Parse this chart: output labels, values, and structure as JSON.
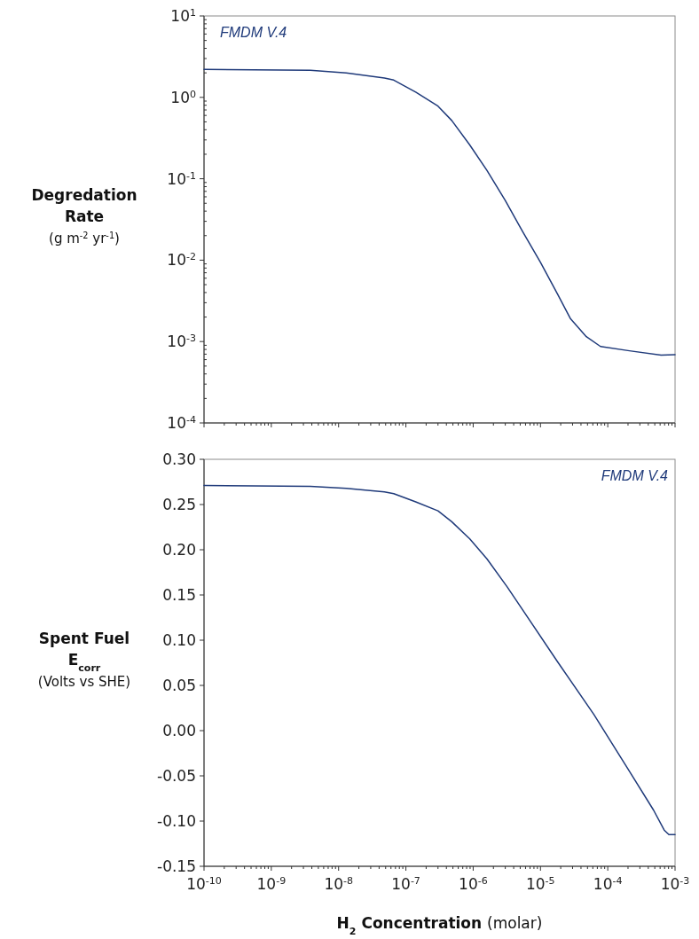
{
  "chart_data": [
    {
      "type": "line",
      "ylabel": "Degredation\nRate\n(g m$^{-2}$ yr$^{-1}$)",
      "annotations": [
        "FMDM V.4"
      ],
      "log": "xy",
      "xlim": [
        1e-10,
        0.001
      ],
      "xticks": [
        1e-10,
        1e-09,
        1e-08,
        1e-07,
        1e-06,
        1e-05,
        0.0001,
        0.001
      ],
      "ylim": [
        0.0001,
        10
      ],
      "yticks": [
        {
          "value": 0.0001,
          "label": "10$^{-4}$"
        },
        {
          "value": 0.001,
          "label": "10$^{-3}$"
        },
        {
          "value": 0.01,
          "label": "10$^{-2}$"
        },
        {
          "value": 0.1,
          "label": "10$^{-1}$"
        },
        {
          "value": 1,
          "label": "10$^{0}$"
        },
        {
          "value": 10,
          "label": "10$^{1}$"
        }
      ],
      "tick_labels": "y",
      "grid": false,
      "marker": "none",
      "line_style": "solid",
      "series": [
        {
          "color": "#1f3a7a",
          "x": [
            1e-10,
            3.8e-09,
            1.3e-08,
            4.8e-08,
            6.6e-08,
            1.4e-07,
            3e-07,
            4.8e-07,
            8.9e-07,
            1.6e-06,
            3e-06,
            5.5e-06,
            1e-05,
            1.8e-05,
            2.8e-05,
            4.8e-05,
            7.8e-05,
            0.00021,
            0.00062,
            0.001
          ],
          "values": [
            2.2,
            2.15,
            2.0,
            1.73,
            1.63,
            1.16,
            0.78,
            0.52,
            0.26,
            0.127,
            0.054,
            0.022,
            0.0094,
            0.0038,
            0.0019,
            0.00115,
            0.00087,
            0.00077,
            0.00068,
            0.00069
          ]
        }
      ]
    },
    {
      "type": "line",
      "xlabel": "H$_{2}$ Concentration (molar)",
      "ylabel": "Spent Fuel\nE$_{corr}$\n(Volts vs SHE)",
      "annotations": [
        "FMDM V.4"
      ],
      "log": "x",
      "xlim": [
        1e-10,
        0.001
      ],
      "xticks": [
        {
          "value": 1e-10,
          "label": "10$^{-10}$"
        },
        {
          "value": 1e-09,
          "label": "10$^{-9}$"
        },
        {
          "value": 1e-08,
          "label": "10$^{-8}$"
        },
        {
          "value": 1e-07,
          "label": "10$^{-7}$"
        },
        {
          "value": 1e-06,
          "label": "10$^{-6}$"
        },
        {
          "value": 1e-05,
          "label": "10$^{-5}$"
        },
        {
          "value": 0.0001,
          "label": "10$^{-4}$"
        },
        {
          "value": 0.001,
          "label": "10$^{-3}$"
        }
      ],
      "ylim": [
        -0.15,
        0.3
      ],
      "yticks": [
        {
          "value": -0.15,
          "label": "-0.15"
        },
        {
          "value": -0.1,
          "label": "-0.10"
        },
        {
          "value": -0.05,
          "label": "-0.05"
        },
        {
          "value": 0,
          "label": "0.00"
        },
        {
          "value": 0.05,
          "label": "0.05"
        },
        {
          "value": 0.1,
          "label": "0.10"
        },
        {
          "value": 0.15,
          "label": "0.15"
        },
        {
          "value": 0.2,
          "label": "0.20"
        },
        {
          "value": 0.25,
          "label": "0.25"
        },
        {
          "value": 0.3,
          "label": "0.30"
        }
      ],
      "grid": false,
      "marker": "none",
      "line_style": "solid",
      "series": [
        {
          "color": "#1f3a7a",
          "x": [
            1e-10,
            3.8e-09,
            1.3e-08,
            4.8e-08,
            6.6e-08,
            1.4e-07,
            3e-07,
            4.8e-07,
            8.9e-07,
            1.6e-06,
            3.2e-06,
            5.5e-06,
            1.8e-05,
            6.2e-05,
            0.00021,
            0.00048,
            0.00069,
            0.00081,
            0.001
          ],
          "values": [
            0.271,
            0.27,
            0.268,
            0.264,
            0.262,
            0.253,
            0.243,
            0.231,
            0.212,
            0.19,
            0.159,
            0.133,
            0.076,
            0.018,
            -0.045,
            -0.088,
            -0.11,
            -0.115,
            -0.115
          ]
        }
      ]
    }
  ]
}
